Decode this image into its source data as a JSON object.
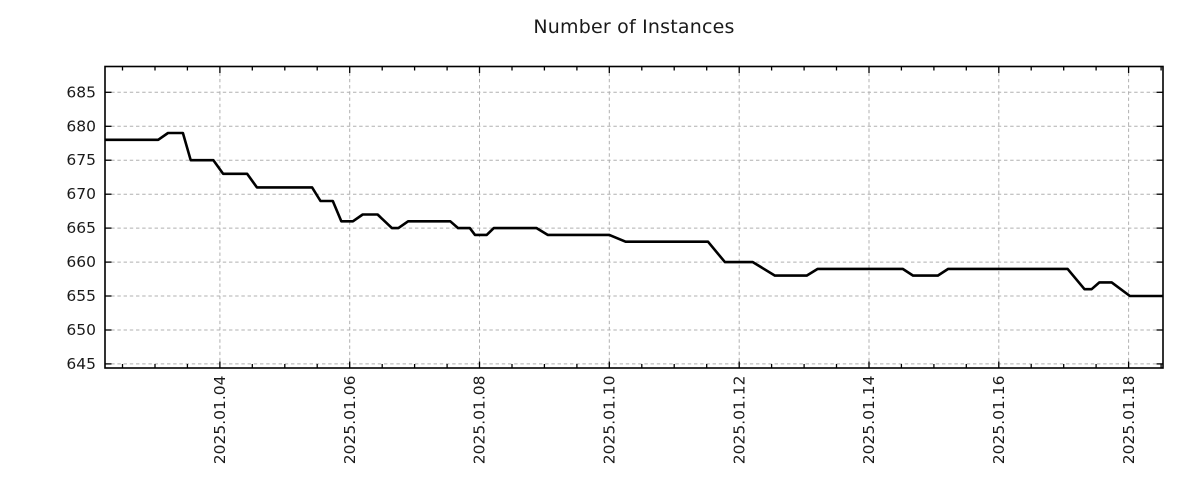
{
  "page": {
    "background": "#ffffff"
  },
  "chart_data": {
    "type": "line",
    "title": "Number of Instances",
    "xlabel": "",
    "ylabel": "",
    "legend": null,
    "grid": {
      "visible": true,
      "style": "dashed",
      "color": "#b0b0b0"
    },
    "x_axis": {
      "unit": "date (day of 2025-01)",
      "range_days": [
        2.23,
        18.53
      ],
      "major_tick_days": [
        4,
        6,
        8,
        10,
        12,
        14,
        16,
        18
      ],
      "major_tick_labels": [
        "2025.01.04",
        "2025.01.06",
        "2025.01.08",
        "2025.01.10",
        "2025.01.12",
        "2025.01.14",
        "2025.01.16",
        "2025.01.18"
      ],
      "minor_tick_step_days": 0.5,
      "minor_tick_start_day": 2.5,
      "minor_tick_end_day": 18.5
    },
    "y_axis": {
      "range": [
        644.4,
        688.8
      ],
      "ticks": [
        645,
        650,
        655,
        660,
        665,
        670,
        675,
        680,
        685
      ],
      "tick_labels": [
        "645",
        "650",
        "655",
        "660",
        "665",
        "670",
        "675",
        "680",
        "685"
      ]
    },
    "series": [
      {
        "name": "Number of Instances",
        "color": "#000000",
        "line_width": 2.6,
        "points_day_value": [
          [
            2.23,
            678
          ],
          [
            3.05,
            678
          ],
          [
            3.2,
            679
          ],
          [
            3.43,
            679
          ],
          [
            3.55,
            675
          ],
          [
            3.9,
            675
          ],
          [
            4.05,
            673
          ],
          [
            4.42,
            673
          ],
          [
            4.57,
            671
          ],
          [
            5.42,
            671
          ],
          [
            5.55,
            669
          ],
          [
            5.74,
            669
          ],
          [
            5.87,
            666
          ],
          [
            6.05,
            666
          ],
          [
            6.2,
            667
          ],
          [
            6.43,
            667
          ],
          [
            6.65,
            665
          ],
          [
            6.75,
            665
          ],
          [
            6.9,
            666
          ],
          [
            7.55,
            666
          ],
          [
            7.67,
            665
          ],
          [
            7.85,
            665
          ],
          [
            7.93,
            664
          ],
          [
            8.11,
            664
          ],
          [
            8.22,
            665
          ],
          [
            8.88,
            665
          ],
          [
            9.05,
            664
          ],
          [
            10.0,
            664
          ],
          [
            10.25,
            663
          ],
          [
            11.52,
            663
          ],
          [
            11.78,
            660
          ],
          [
            12.21,
            660
          ],
          [
            12.55,
            658
          ],
          [
            13.04,
            658
          ],
          [
            13.21,
            659
          ],
          [
            14.52,
            659
          ],
          [
            14.68,
            658
          ],
          [
            15.06,
            658
          ],
          [
            15.22,
            659
          ],
          [
            17.06,
            659
          ],
          [
            17.32,
            656
          ],
          [
            17.43,
            656
          ],
          [
            17.55,
            657
          ],
          [
            17.74,
            657
          ],
          [
            18.02,
            655
          ],
          [
            18.53,
            655
          ]
        ]
      }
    ]
  }
}
